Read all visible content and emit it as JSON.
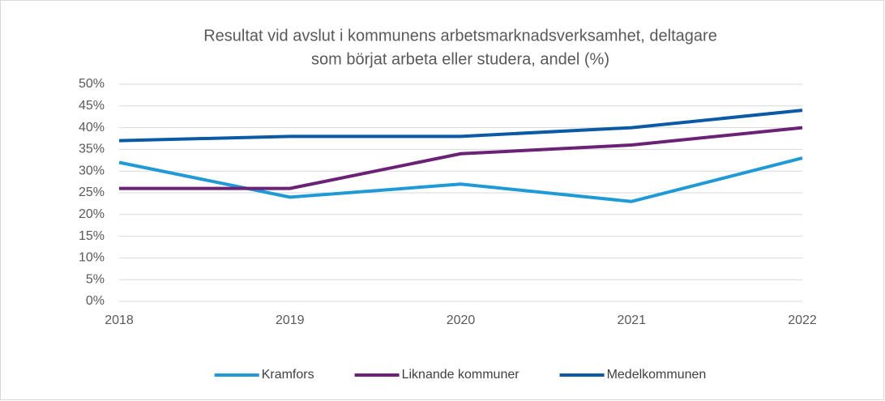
{
  "chart_data": {
    "type": "line",
    "title": [
      "Resultat vid avslut i kommunens arbetsmarknadsverksamhet, deltagare",
      "som börjat arbeta eller studera, andel (%)"
    ],
    "categories": [
      "2018",
      "2019",
      "2020",
      "2021",
      "2022"
    ],
    "series": [
      {
        "name": "Kramfors",
        "color": "#1f9ad6",
        "values": [
          32,
          24,
          27,
          23,
          33
        ]
      },
      {
        "name": "Liknande kommuner",
        "color": "#6b2176",
        "values": [
          26,
          26,
          34,
          36,
          40
        ]
      },
      {
        "name": "Medelkommunen",
        "color": "#0a5aa5",
        "values": [
          37,
          38,
          38,
          40,
          44
        ]
      }
    ],
    "ylim": [
      0,
      50
    ],
    "yticks": [
      {
        "value": 0,
        "label": "0%"
      },
      {
        "value": 5,
        "label": "5%"
      },
      {
        "value": 10,
        "label": "10%"
      },
      {
        "value": 15,
        "label": "15%"
      },
      {
        "value": 20,
        "label": "20%"
      },
      {
        "value": 25,
        "label": "25%"
      },
      {
        "value": 30,
        "label": "30%"
      },
      {
        "value": 35,
        "label": "35%"
      },
      {
        "value": 40,
        "label": "40%"
      },
      {
        "value": 45,
        "label": "45%"
      },
      {
        "value": 50,
        "label": "50%"
      }
    ],
    "grid": true,
    "legend": "bottom"
  }
}
